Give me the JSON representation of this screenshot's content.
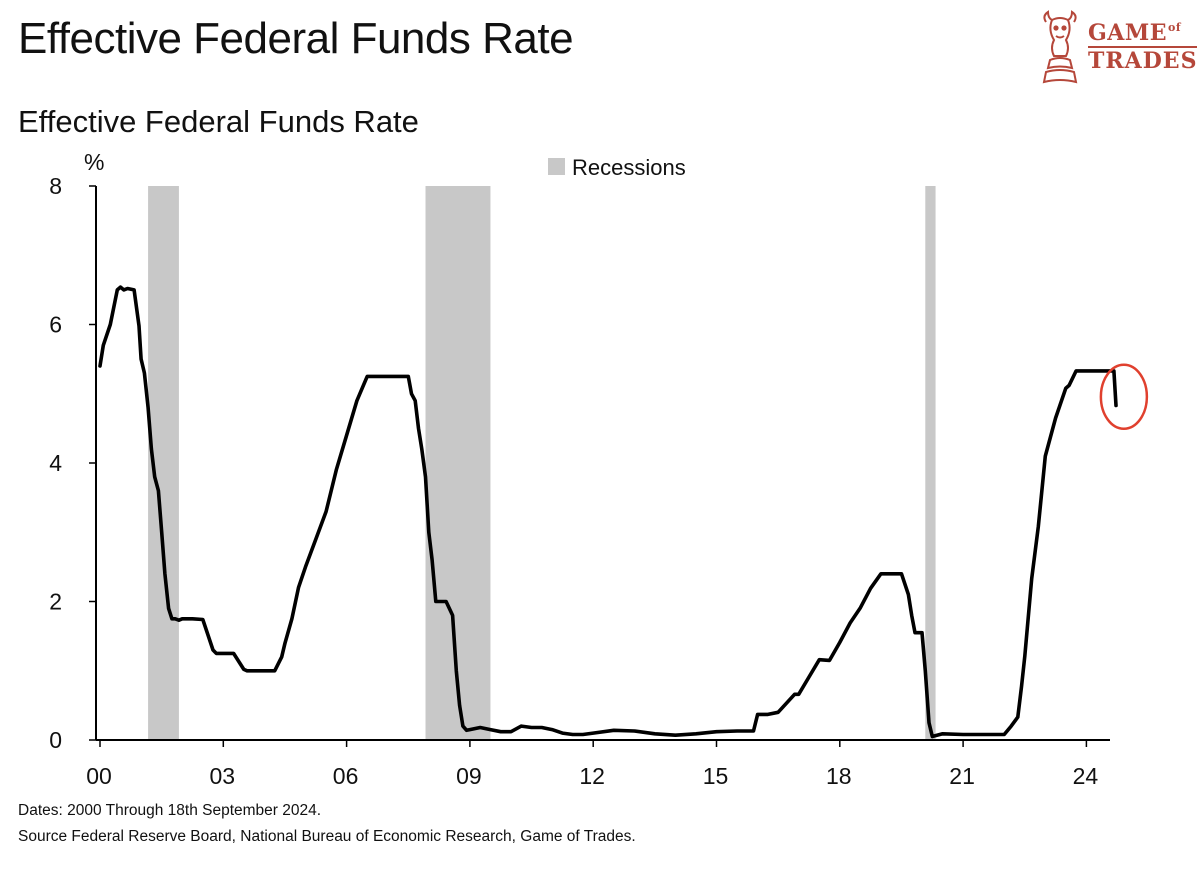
{
  "header": {
    "title": "Effective Federal Funds Rate",
    "logo_line1": "GAME",
    "logo_of": "of",
    "logo_line2": "TRADES"
  },
  "footer": {
    "dates_note": "Dates: 2000 Through 18th September 2024.",
    "source_note": "Source Federal Reserve Board, National Bureau of Economic Research, Game of Trades."
  },
  "colors": {
    "line": "#000000",
    "recession": "#c8c8c8",
    "highlight": "#e0402e",
    "brand": "#b5473a"
  },
  "chart_data": {
    "type": "line",
    "title": "Effective Federal Funds Rate",
    "ylabel": "%",
    "xlabel": "",
    "xlim": [
      2000.0,
      2025.0
    ],
    "ylim": [
      0,
      8
    ],
    "y_ticks": [
      0,
      2,
      4,
      6,
      8
    ],
    "x_ticks": [
      {
        "value": 2000,
        "label": "00"
      },
      {
        "value": 2003,
        "label": "03"
      },
      {
        "value": 2006,
        "label": "06"
      },
      {
        "value": 2009,
        "label": "09"
      },
      {
        "value": 2012,
        "label": "12"
      },
      {
        "value": 2015,
        "label": "15"
      },
      {
        "value": 2018,
        "label": "18"
      },
      {
        "value": 2021,
        "label": "21"
      },
      {
        "value": 2024,
        "label": "24"
      }
    ],
    "grid": false,
    "legend": {
      "label": "Recessions",
      "position": "top-center"
    },
    "recessions": [
      {
        "start": 2001.17,
        "end": 2001.92
      },
      {
        "start": 2007.92,
        "end": 2009.5
      },
      {
        "start": 2020.08,
        "end": 2020.33
      }
    ],
    "annotation": {
      "type": "circle",
      "x": 2024.62,
      "y": 5.0
    },
    "series": [
      {
        "name": "Effective Federal Funds Rate",
        "x": [
          2000.0,
          2000.08,
          2000.25,
          2000.42,
          2000.5,
          2000.58,
          2000.67,
          2000.83,
          2000.95,
          2001.0,
          2001.08,
          2001.17,
          2001.25,
          2001.33,
          2001.42,
          2001.5,
          2001.58,
          2001.67,
          2001.75,
          2001.83,
          2001.92,
          2002.0,
          2002.25,
          2002.5,
          2002.75,
          2002.83,
          2002.92,
          2003.0,
          2003.25,
          2003.5,
          2003.58,
          2003.75,
          2004.0,
          2004.25,
          2004.42,
          2004.5,
          2004.67,
          2004.83,
          2005.0,
          2005.25,
          2005.5,
          2005.75,
          2006.0,
          2006.25,
          2006.5,
          2006.58,
          2006.75,
          2007.0,
          2007.25,
          2007.5,
          2007.58,
          2007.67,
          2007.75,
          2007.83,
          2007.92,
          2008.0,
          2008.08,
          2008.17,
          2008.25,
          2008.33,
          2008.42,
          2008.58,
          2008.67,
          2008.75,
          2008.83,
          2008.92,
          2009.0,
          2009.25,
          2009.5,
          2009.75,
          2010.0,
          2010.25,
          2010.5,
          2010.75,
          2011.0,
          2011.25,
          2011.5,
          2011.75,
          2012.0,
          2012.5,
          2013.0,
          2013.5,
          2014.0,
          2014.5,
          2015.0,
          2015.5,
          2015.9,
          2016.0,
          2016.25,
          2016.5,
          2016.9,
          2017.0,
          2017.25,
          2017.5,
          2017.75,
          2018.0,
          2018.25,
          2018.5,
          2018.75,
          2019.0,
          2019.25,
          2019.5,
          2019.67,
          2019.75,
          2019.83,
          2020.0,
          2020.08,
          2020.17,
          2020.25,
          2020.5,
          2021.0,
          2021.5,
          2022.0,
          2022.17,
          2022.33,
          2022.42,
          2022.5,
          2022.67,
          2022.83,
          2023.0,
          2023.25,
          2023.5,
          2023.58,
          2023.75,
          2024.0,
          2024.25,
          2024.5,
          2024.6,
          2024.67,
          2024.72
        ],
        "values": [
          5.4,
          5.7,
          6.0,
          6.5,
          6.54,
          6.5,
          6.52,
          6.5,
          5.98,
          5.5,
          5.3,
          4.8,
          4.2,
          3.8,
          3.6,
          3.0,
          2.4,
          1.9,
          1.75,
          1.75,
          1.73,
          1.75,
          1.75,
          1.74,
          1.3,
          1.25,
          1.25,
          1.25,
          1.25,
          1.02,
          1.0,
          1.0,
          1.0,
          1.0,
          1.2,
          1.4,
          1.75,
          2.2,
          2.5,
          2.9,
          3.3,
          3.9,
          4.4,
          4.9,
          5.25,
          5.25,
          5.25,
          5.25,
          5.25,
          5.25,
          5.0,
          4.9,
          4.5,
          4.2,
          3.8,
          3.0,
          2.6,
          2.0,
          2.0,
          2.0,
          2.0,
          1.8,
          1.0,
          0.5,
          0.2,
          0.14,
          0.15,
          0.18,
          0.15,
          0.12,
          0.12,
          0.2,
          0.18,
          0.18,
          0.15,
          0.1,
          0.08,
          0.08,
          0.1,
          0.14,
          0.13,
          0.09,
          0.07,
          0.09,
          0.12,
          0.13,
          0.13,
          0.37,
          0.37,
          0.4,
          0.66,
          0.66,
          0.91,
          1.16,
          1.15,
          1.41,
          1.69,
          1.91,
          2.19,
          2.4,
          2.4,
          2.4,
          2.1,
          1.8,
          1.55,
          1.55,
          1.0,
          0.25,
          0.05,
          0.09,
          0.08,
          0.08,
          0.08,
          0.2,
          0.33,
          0.77,
          1.21,
          2.33,
          3.08,
          4.1,
          4.65,
          5.08,
          5.12,
          5.33,
          5.33,
          5.33,
          5.33,
          5.33,
          5.33,
          4.83
        ]
      }
    ]
  }
}
